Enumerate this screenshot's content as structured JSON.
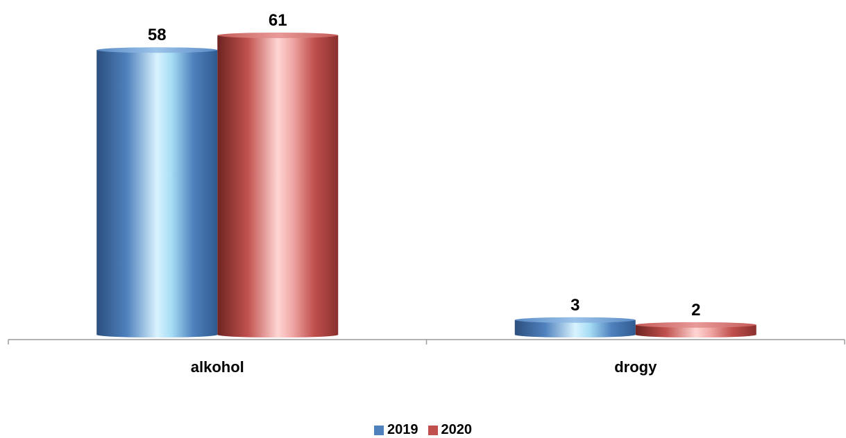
{
  "chart_data": {
    "type": "bar",
    "categories": [
      "alkohol",
      "drogy"
    ],
    "series": [
      {
        "name": "2019",
        "values": [
          58,
          3
        ],
        "color": "#4F81BD"
      },
      {
        "name": "2020",
        "values": [
          61,
          2
        ],
        "color": "#C0504D"
      }
    ],
    "ylim": [
      0,
      61
    ],
    "grid": false,
    "legend_position": "bottom"
  }
}
